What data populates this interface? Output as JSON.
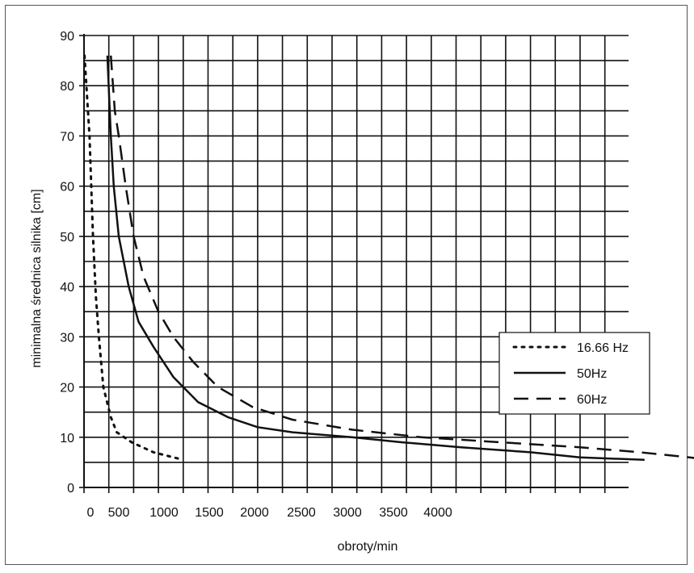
{
  "chart_data": {
    "type": "line",
    "title": "",
    "xlabel": "obroty/min",
    "ylabel": "minimalna średnica silnika [cm]",
    "x_tick_labels": [
      "0",
      "500",
      "1000",
      "1500",
      "2000",
      "2500",
      "3000",
      "3500",
      "4000"
    ],
    "y_ticks": [
      0,
      10,
      20,
      30,
      40,
      50,
      60,
      70,
      80,
      90
    ],
    "ylim": [
      0,
      90
    ],
    "grid": true,
    "legend_position": "right",
    "series": [
      {
        "name": "16.66 Hz",
        "style": "dotted",
        "color": "#111111",
        "points": [
          [
            5,
            86
          ],
          [
            55,
            70
          ],
          [
            90,
            50
          ],
          [
            120,
            38
          ],
          [
            150,
            30
          ],
          [
            195,
            20
          ],
          [
            270,
            14
          ],
          [
            330,
            11
          ],
          [
            480,
            9
          ],
          [
            700,
            7
          ],
          [
            1000,
            5.5
          ]
        ]
      },
      {
        "name": "50Hz",
        "style": "solid",
        "color": "#111111",
        "points": [
          [
            235,
            86
          ],
          [
            270,
            70
          ],
          [
            300,
            60
          ],
          [
            350,
            50
          ],
          [
            450,
            40
          ],
          [
            550,
            33
          ],
          [
            700,
            28
          ],
          [
            900,
            22
          ],
          [
            1150,
            17
          ],
          [
            1450,
            14
          ],
          [
            1750,
            12
          ],
          [
            2100,
            11
          ],
          [
            2700,
            10
          ],
          [
            3200,
            9
          ],
          [
            3800,
            8
          ],
          [
            4500,
            7
          ],
          [
            5000,
            6
          ],
          [
            5650,
            5.5
          ]
        ]
      },
      {
        "name": "60Hz",
        "style": "dashed",
        "color": "#111111",
        "points": [
          [
            270,
            86
          ],
          [
            310,
            75
          ],
          [
            350,
            70
          ],
          [
            420,
            60
          ],
          [
            500,
            50
          ],
          [
            600,
            42
          ],
          [
            750,
            35
          ],
          [
            900,
            30
          ],
          [
            1100,
            25
          ],
          [
            1350,
            20
          ],
          [
            1700,
            16
          ],
          [
            2100,
            13.5
          ],
          [
            2700,
            11.5
          ],
          [
            3400,
            10
          ],
          [
            4200,
            9
          ],
          [
            5000,
            8
          ],
          [
            5600,
            7
          ],
          [
            6100,
            6
          ],
          [
            6300,
            5.5
          ]
        ]
      }
    ]
  }
}
